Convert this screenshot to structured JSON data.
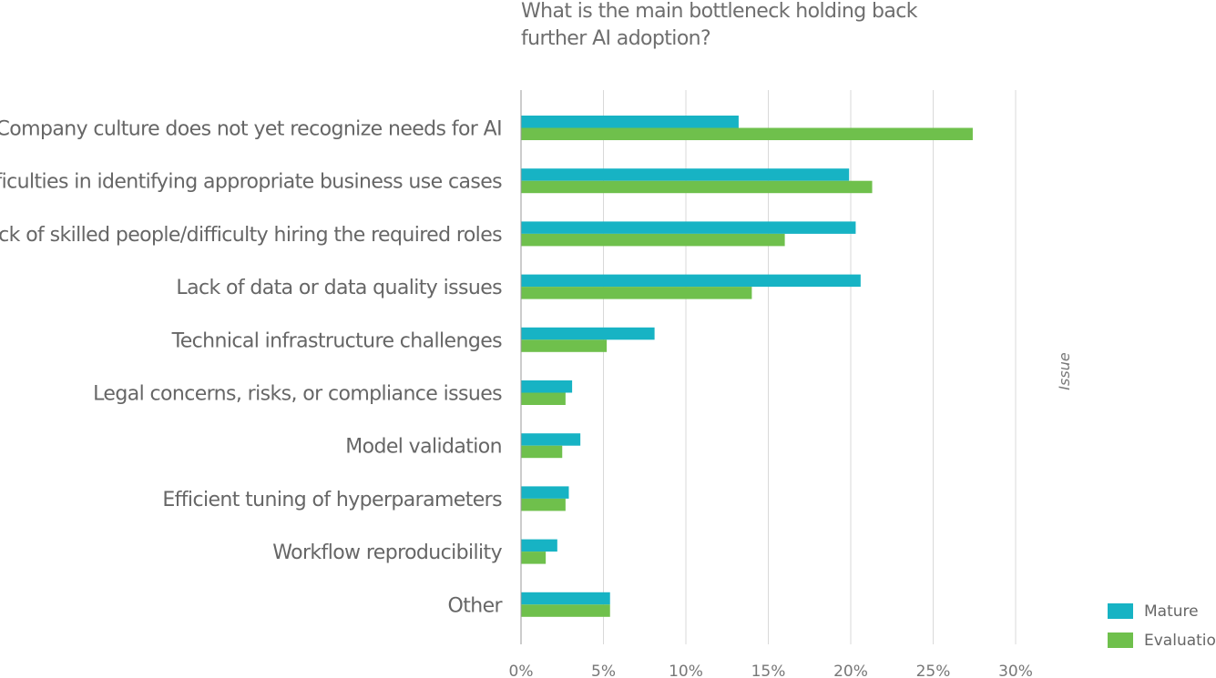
{
  "chart_data": {
    "type": "bar",
    "orientation": "horizontal",
    "title_lines": [
      "What is the main bottleneck holding back",
      "further AI adoption?"
    ],
    "axis_title": "Issue",
    "categories": [
      "Company culture does not yet recognize needs for AI",
      "Difficulties in identifying appropriate business use cases",
      "Lack of skilled people/difficulty hiring the required roles",
      "Lack of data or data quality issues",
      "Technical infrastructure challenges",
      "Legal concerns, risks, or compliance issues",
      "Model validation",
      "Efficient tuning of hyperparameters",
      "Workflow reproducibility",
      "Other"
    ],
    "series": [
      {
        "name": "Mature",
        "color": "#17b3c4",
        "values": [
          13.2,
          19.9,
          20.3,
          20.6,
          8.1,
          3.1,
          3.6,
          2.9,
          2.2,
          5.4
        ]
      },
      {
        "name": "Evaluation",
        "color": "#6fc04c",
        "values": [
          27.4,
          21.3,
          16.0,
          14.0,
          5.2,
          2.7,
          2.5,
          2.7,
          1.5,
          5.4
        ]
      }
    ],
    "xlim": [
      0,
      30
    ],
    "x_ticks": [
      "0%",
      "5%",
      "10%",
      "15%",
      "20%",
      "25%",
      "30%"
    ],
    "grid": true,
    "legend_position": "bottom-right"
  }
}
